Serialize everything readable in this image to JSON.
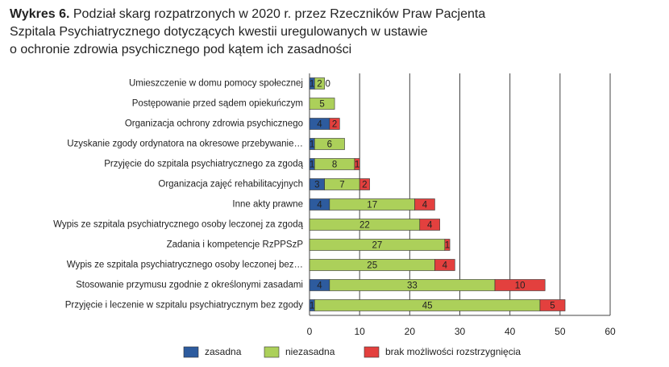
{
  "chart_data": {
    "type": "stacked-barh",
    "title_label": "Wykres 6.",
    "title": [
      "Podział skarg rozpatrzonych w 2020 r. przez Rzeczników Praw Pacjenta",
      "Szpitala Psychiatrycznego dotyczących kwestii uregulowanych w ustawie",
      "o ochronie zdrowia psychicznego pod kątem ich zasadności"
    ],
    "categories": [
      "Umieszczenie w domu pomocy społecznej",
      "Postępowanie przed sądem opiekuńczym",
      "Organizacja ochrony zdrowia psychicznego",
      "Uzyskanie zgody ordynatora na okresowe przebywanie…",
      "Przyjęcie do szpitala psychiatrycznego za zgodą",
      "Organizacja zajęć rehabilitacyjnych",
      "Inne akty prawne",
      "Wypis ze szpitala psychiatrycznego osoby leczonej za zgodą",
      "Zadania i kompetencje RzPPSzP",
      "Wypis ze szpitala psychiatrycznego osoby leczonej bez…",
      "Stosowanie przymusu zgodnie z określonymi zasadami",
      "Przyjęcie i leczenie w szpitalu psychiatrycznym bez zgody"
    ],
    "series": [
      {
        "name": "zasadna",
        "color": "#2d5b9e",
        "label_color": "#ffffff",
        "values": [
          1,
          null,
          4,
          1,
          1,
          3,
          4,
          null,
          null,
          null,
          4,
          1
        ]
      },
      {
        "name": "niezasadna",
        "color": "#acd05a",
        "label_color": "#222222",
        "values": [
          2,
          5,
          null,
          6,
          8,
          7,
          17,
          22,
          27,
          25,
          33,
          45
        ]
      },
      {
        "name": "brak możliwości rozstrzygnięcia",
        "color": "#e3403e",
        "label_color": "#222222",
        "values": [
          0,
          null,
          2,
          null,
          1,
          2,
          4,
          4,
          1,
          4,
          10,
          5
        ]
      }
    ],
    "xlim": [
      0,
      60
    ],
    "xticks": [
      0,
      10,
      20,
      30,
      40,
      50,
      60
    ],
    "grid": true
  }
}
